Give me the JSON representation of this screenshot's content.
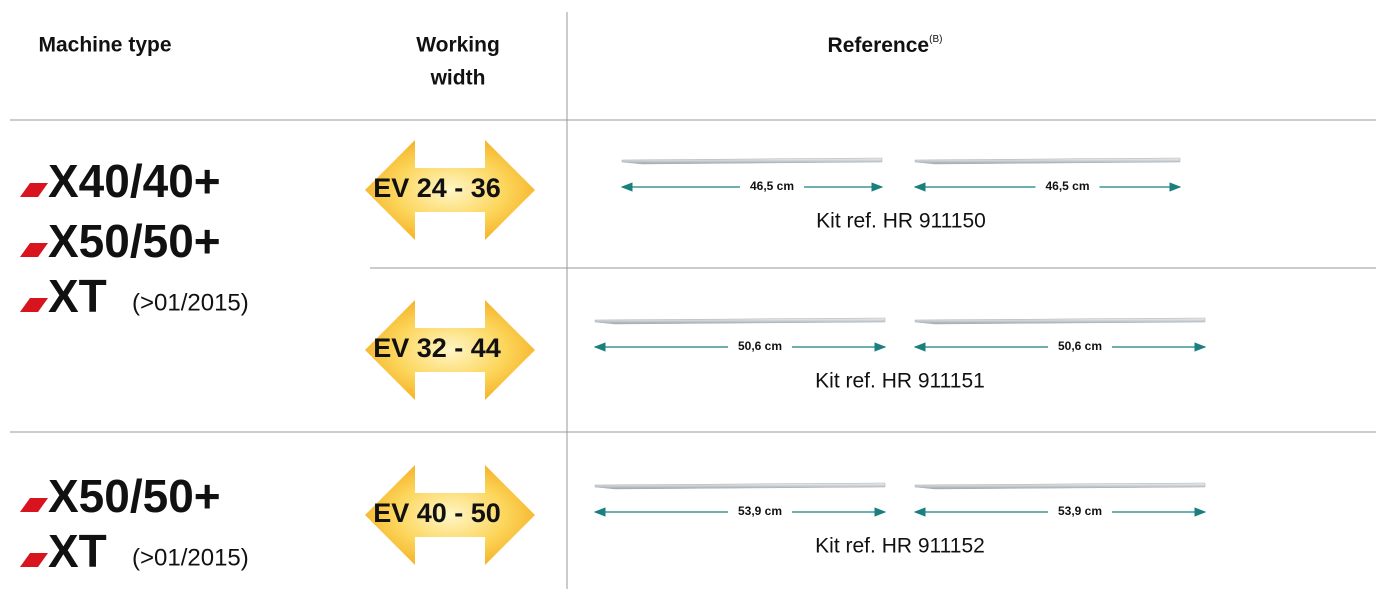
{
  "header": {
    "machine_type": "Machine type",
    "working_width": [
      "Working",
      "width"
    ],
    "reference": "Reference",
    "reference_note": "(B)"
  },
  "groups": [
    {
      "machines": [
        {
          "name": "X40/40+"
        },
        {
          "name": "X50/50+"
        },
        {
          "name": "XT",
          "note": "(>01/2015)"
        }
      ],
      "rows": [
        {
          "width": "EV 24 - 36",
          "lengths": [
            "46,5 cm",
            "46,5 cm"
          ],
          "kit": "Kit ref. HR 911150"
        },
        {
          "width": "EV 32 - 44",
          "lengths": [
            "50,6 cm",
            "50,6 cm"
          ],
          "kit": "Kit ref. HR 911151"
        }
      ]
    },
    {
      "machines": [
        {
          "name": "X50/50+"
        },
        {
          "name": "XT",
          "note": "(>01/2015)"
        }
      ],
      "rows": [
        {
          "width": "EV 40 - 50",
          "lengths": [
            "53,9 cm",
            "53,9 cm"
          ],
          "kit": "Kit ref. HR 911152"
        }
      ]
    }
  ]
}
